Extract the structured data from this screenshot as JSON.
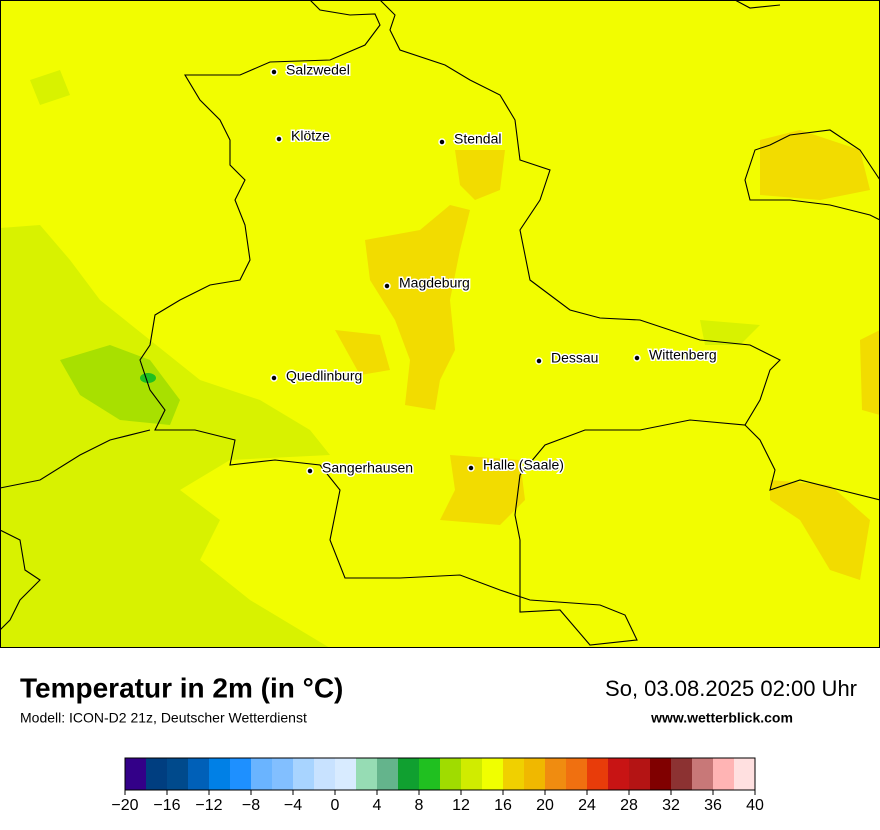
{
  "header": {
    "title": "Temperatur in 2m (in °C)",
    "model": "Modell: ICON-D2 21z, Deutscher Wetterdienst",
    "datetime": "So, 03.08.2025 02:00 Uhr",
    "website": "www.wetterblick.com"
  },
  "map": {
    "cities": [
      "Salzwedel",
      "Klötze",
      "Stendal",
      "Magdeburg",
      "Dessau",
      "Wittenberg",
      "Quedlinburg",
      "Sangerhausen",
      "Halle (Saale)"
    ]
  },
  "colorbar": {
    "lim": [
      -20,
      40
    ],
    "ticks": [
      {
        "value": -20,
        "label": "−20"
      },
      {
        "value": -16,
        "label": "−16"
      },
      {
        "value": -12,
        "label": "−12"
      },
      {
        "value": -8,
        "label": "−8"
      },
      {
        "value": -4,
        "label": "−4"
      },
      0,
      4,
      8,
      12,
      16,
      20,
      24,
      28,
      32,
      36,
      40
    ],
    "colors": [
      "#330088",
      "#003e80",
      "#004a8c",
      "#0060b8",
      "#0080e6",
      "#1e90ff",
      "#6ab4ff",
      "#82bfff",
      "#a8d4ff",
      "#c8e2ff",
      "#d8ebff",
      "#96dcb4",
      "#64b48c",
      "#10a030",
      "#20c020",
      "#a0dc00",
      "#d0ec00",
      "#f0ff00",
      "#f0d000",
      "#f0b800",
      "#f08c10",
      "#f07010",
      "#e83c0a",
      "#c81414",
      "#b41414",
      "#800000",
      "#8c3232",
      "#c87878",
      "#ffb4b4",
      "#ffe0e0"
    ]
  }
}
